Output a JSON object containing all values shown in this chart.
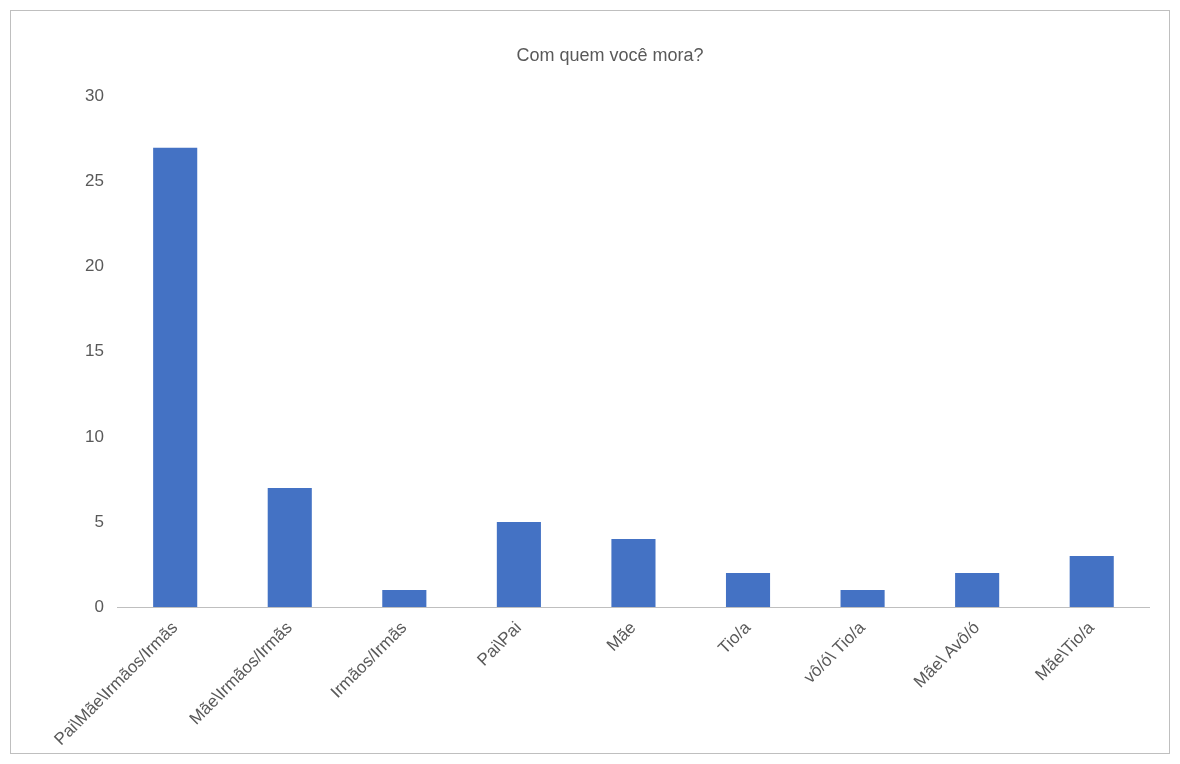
{
  "chart_data": {
    "type": "bar",
    "title": "Com quem você mora?",
    "categories": [
      "Pai\\Mãe\\Irmãos/Irmãs",
      "Mãe\\Irmãos/Irmãs",
      "Irmãos/Irmãs",
      "Pai\\Pai",
      "Mãe",
      "Tio/a",
      "vô/ó\\ Tio/a",
      "Mãe\\ Avô/ó",
      "Mãe\\Tio/a"
    ],
    "values": [
      27,
      7,
      1,
      5,
      4,
      2,
      1,
      2,
      3
    ],
    "color": "#4472c4",
    "ylim": [
      0,
      30
    ],
    "yticks": [
      0,
      5,
      10,
      15,
      20,
      25,
      30
    ],
    "grid": false,
    "legend": false
  }
}
